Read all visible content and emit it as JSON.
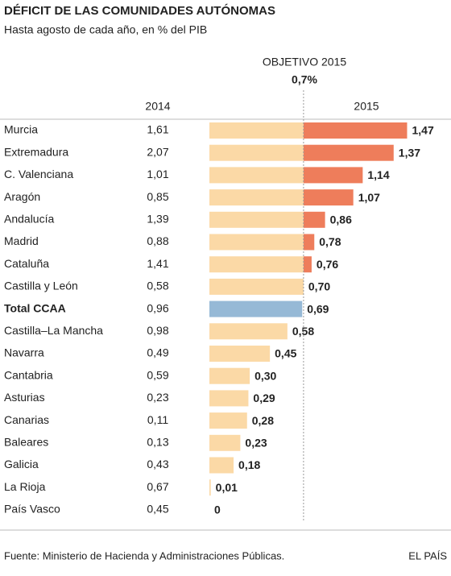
{
  "chart_data": {
    "type": "bar",
    "title": "DÉFICIT DE LAS COMUNIDADES AUTÓNOMAS",
    "subtitle": "Hasta agosto de cada año, en % del PIB",
    "categories": [
      "Murcia",
      "Extremadura",
      "C. Valenciana",
      "Aragón",
      "Andalucía",
      "Madrid",
      "Cataluña",
      "Castilla y León",
      "Total CCAA",
      "Castilla–La Mancha",
      "Navarra",
      "Cantabria",
      "Asturias",
      "Canarias",
      "Baleares",
      "Galicia",
      "La Rioja",
      "País Vasco"
    ],
    "highlight_index": 8,
    "series": [
      {
        "name": "2014",
        "values": [
          1.61,
          2.07,
          1.01,
          0.85,
          1.39,
          0.88,
          1.41,
          0.58,
          0.96,
          0.98,
          0.49,
          0.59,
          0.23,
          0.11,
          0.13,
          0.43,
          0.67,
          0.45
        ],
        "value_labels": [
          "1,61",
          "2,07",
          "1,01",
          "0,85",
          "1,39",
          "0,88",
          "1,41",
          "0,58",
          "0,96",
          "0,98",
          "0,49",
          "0,59",
          "0,23",
          "0,11",
          "0,13",
          "0,43",
          "0,67",
          "0,45"
        ]
      },
      {
        "name": "2015",
        "values": [
          1.47,
          1.37,
          1.14,
          1.07,
          0.86,
          0.78,
          0.76,
          0.7,
          0.69,
          0.58,
          0.45,
          0.3,
          0.29,
          0.28,
          0.23,
          0.18,
          0.01,
          0
        ],
        "value_labels": [
          "1,47",
          "1,37",
          "1,14",
          "1,07",
          "0,86",
          "0,78",
          "0,76",
          "0,70",
          "0,69",
          "0,58",
          "0,45",
          "0,30",
          "0,29",
          "0,28",
          "0,23",
          "0,18",
          "0,01",
          "0"
        ]
      }
    ],
    "target": {
      "label": "OBJETIVO 2015",
      "value": 0.7,
      "value_label": "0,7%"
    },
    "colors": {
      "below_target": "#fbd9a6",
      "above_target": "#ee7d5b",
      "highlight": "#96b9d6"
    },
    "source": "Fuente: Ministerio de Hacienda y Administraciones Públicas.",
    "brand": "EL PAÍS"
  }
}
